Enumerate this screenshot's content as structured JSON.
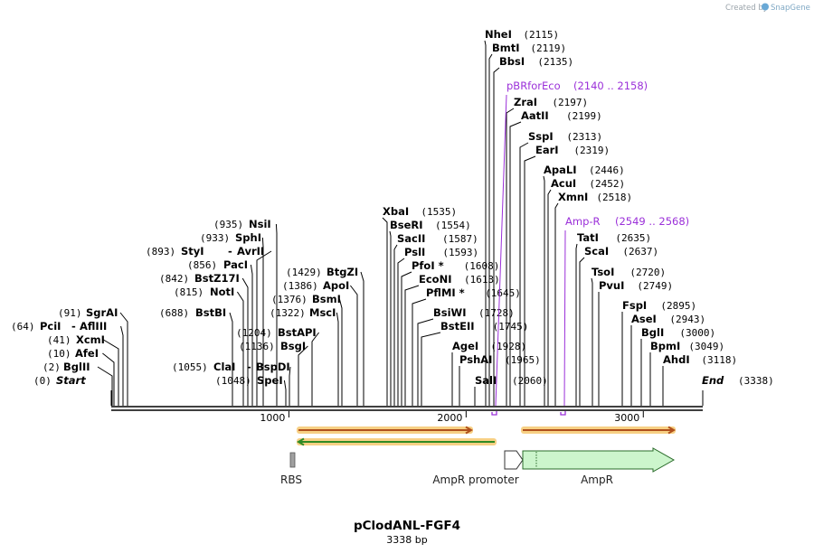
{
  "credit": "Created by",
  "brand": "SnapGene",
  "plasmid": {
    "name": "pClodANL-FGF4",
    "size_label": "3338 bp",
    "length": 3338
  },
  "axis_ticks": [
    "1000",
    "2000",
    "3000"
  ],
  "sites": [
    {
      "name": "Start",
      "pos_label": "(0)",
      "bp": 0,
      "italic": true
    },
    {
      "name": "BglII",
      "pos_label": "(2)",
      "bp": 2
    },
    {
      "name": "AfeI",
      "pos_label": "(10)",
      "bp": 10
    },
    {
      "name": "XcmI",
      "pos_label": "(41)",
      "bp": 41
    },
    {
      "name": "PciI",
      "name2": "AflIII",
      "pos_label": "(64)",
      "bp": 64
    },
    {
      "name": "SgrAI",
      "pos_label": "(91)",
      "bp": 91
    },
    {
      "name": "BstBI",
      "pos_label": "(688)",
      "bp": 688
    },
    {
      "name": "NotI",
      "pos_label": "(815)",
      "bp": 815
    },
    {
      "name": "BstZ17I",
      "pos_label": "(842)",
      "bp": 842
    },
    {
      "name": "PacI",
      "pos_label": "(856)",
      "bp": 856
    },
    {
      "name": "StyI",
      "name2": "AvrII",
      "pos_label": "(893)",
      "bp": 893
    },
    {
      "name": "SphI",
      "pos_label": "(933)",
      "bp": 933
    },
    {
      "name": "NsiI",
      "pos_label": "(935)",
      "bp": 935
    },
    {
      "name": "SpeI",
      "pos_label": "(1048)",
      "bp": 1048
    },
    {
      "name": "ClaI",
      "name2": "BspDI",
      "pos_label": "(1055)",
      "bp": 1055
    },
    {
      "name": "BsgI",
      "pos_label": "(1136)",
      "bp": 1136
    },
    {
      "name": "BstAPI",
      "pos_label": "(1204)",
      "bp": 1204
    },
    {
      "name": "MscI",
      "pos_label": "(1322)",
      "bp": 1322
    },
    {
      "name": "BsmI",
      "pos_label": "(1376)",
      "bp": 1376
    },
    {
      "name": "ApoI",
      "pos_label": "(1386)",
      "bp": 1386
    },
    {
      "name": "BtgZI",
      "pos_label": "(1429)",
      "bp": 1429
    },
    {
      "name": "XbaI",
      "pos_label": "(1535)",
      "bp": 1535
    },
    {
      "name": "BseRI",
      "pos_label": "(1554)",
      "bp": 1554
    },
    {
      "name": "SacII",
      "pos_label": "(1587)",
      "bp": 1587
    },
    {
      "name": "PslI",
      "pos_label": "(1593)",
      "bp": 1593
    },
    {
      "name": "PfoI *",
      "pos_label": "(1608)",
      "bp": 1608
    },
    {
      "name": "EcoNI",
      "pos_label": "(1613)",
      "bp": 1613
    },
    {
      "name": "PflMI *",
      "pos_label": "(1645)",
      "bp": 1645
    },
    {
      "name": "BsiWI",
      "pos_label": "(1728)",
      "bp": 1728
    },
    {
      "name": "BstEII",
      "pos_label": "(1745)",
      "bp": 1745
    },
    {
      "name": "AgeI",
      "pos_label": "(1928)",
      "bp": 1928
    },
    {
      "name": "PshAI",
      "pos_label": "(1965)",
      "bp": 1965
    },
    {
      "name": "SalI",
      "pos_label": "(2060)",
      "bp": 2060
    },
    {
      "name": "NheI",
      "pos_label": "(2115)",
      "bp": 2115
    },
    {
      "name": "BmtI",
      "pos_label": "(2119)",
      "bp": 2119
    },
    {
      "name": "BbsI",
      "pos_label": "(2135)",
      "bp": 2135
    },
    {
      "name": "ZraI",
      "pos_label": "(2197)",
      "bp": 2197
    },
    {
      "name": "AatII",
      "pos_label": "(2199)",
      "bp": 2199
    },
    {
      "name": "SspI",
      "pos_label": "(2313)",
      "bp": 2313
    },
    {
      "name": "EarI",
      "pos_label": "(2319)",
      "bp": 2319
    },
    {
      "name": "ApaLI",
      "pos_label": "(2446)",
      "bp": 2446
    },
    {
      "name": "AcuI",
      "pos_label": "(2452)",
      "bp": 2452
    },
    {
      "name": "XmnI",
      "pos_label": "(2518)",
      "bp": 2518
    },
    {
      "name": "TatI",
      "pos_label": "(2635)",
      "bp": 2635
    },
    {
      "name": "ScaI",
      "pos_label": "(2637)",
      "bp": 2637
    },
    {
      "name": "TsoI",
      "pos_label": "(2720)",
      "bp": 2720
    },
    {
      "name": "PvuI",
      "pos_label": "(2749)",
      "bp": 2749
    },
    {
      "name": "FspI",
      "pos_label": "(2895)",
      "bp": 2895
    },
    {
      "name": "AseI",
      "pos_label": "(2943)",
      "bp": 2943
    },
    {
      "name": "BglI",
      "pos_label": "(3000)",
      "bp": 3000
    },
    {
      "name": "BpmI",
      "pos_label": "(3049)",
      "bp": 3049
    },
    {
      "name": "AhdI",
      "pos_label": "(3118)",
      "bp": 3118
    },
    {
      "name": "End",
      "pos_label": "(3338)",
      "bp": 3338,
      "italic": true
    }
  ],
  "primers": [
    {
      "name": "pBRforEco",
      "range_label": "(2140 .. 2158)",
      "start": 2140,
      "end": 2158
    },
    {
      "name": "Amp-R",
      "range_label": "(2549 .. 2568)",
      "start": 2549,
      "end": 2568
    }
  ],
  "features": [
    {
      "name": "RBS",
      "type": "rbs",
      "start": 1015,
      "end": 1048,
      "color": "#a0a0a0"
    },
    {
      "name": "AmpR promoter",
      "type": "promoter",
      "start": 2260,
      "end": 2365,
      "color": "#ffffff"
    },
    {
      "name": "AmpR",
      "type": "gene",
      "start": 2365,
      "end": 3225,
      "color": "#ccf5cc"
    }
  ],
  "orf_arrows": [
    {
      "direction": "forward",
      "start": 1020,
      "end": 2060,
      "color": "#b0501c",
      "glow": "#f6c86e"
    },
    {
      "direction": "reverse",
      "start": 1020,
      "end": 2125,
      "color": "#2f8a24",
      "glow": "#f6c86e"
    },
    {
      "direction": "forward",
      "start": 2340,
      "end": 3220,
      "color": "#b0501c",
      "glow": "#f6c86e"
    }
  ],
  "colors": {
    "primer": "#9b30d9",
    "backbone": "#000000"
  }
}
